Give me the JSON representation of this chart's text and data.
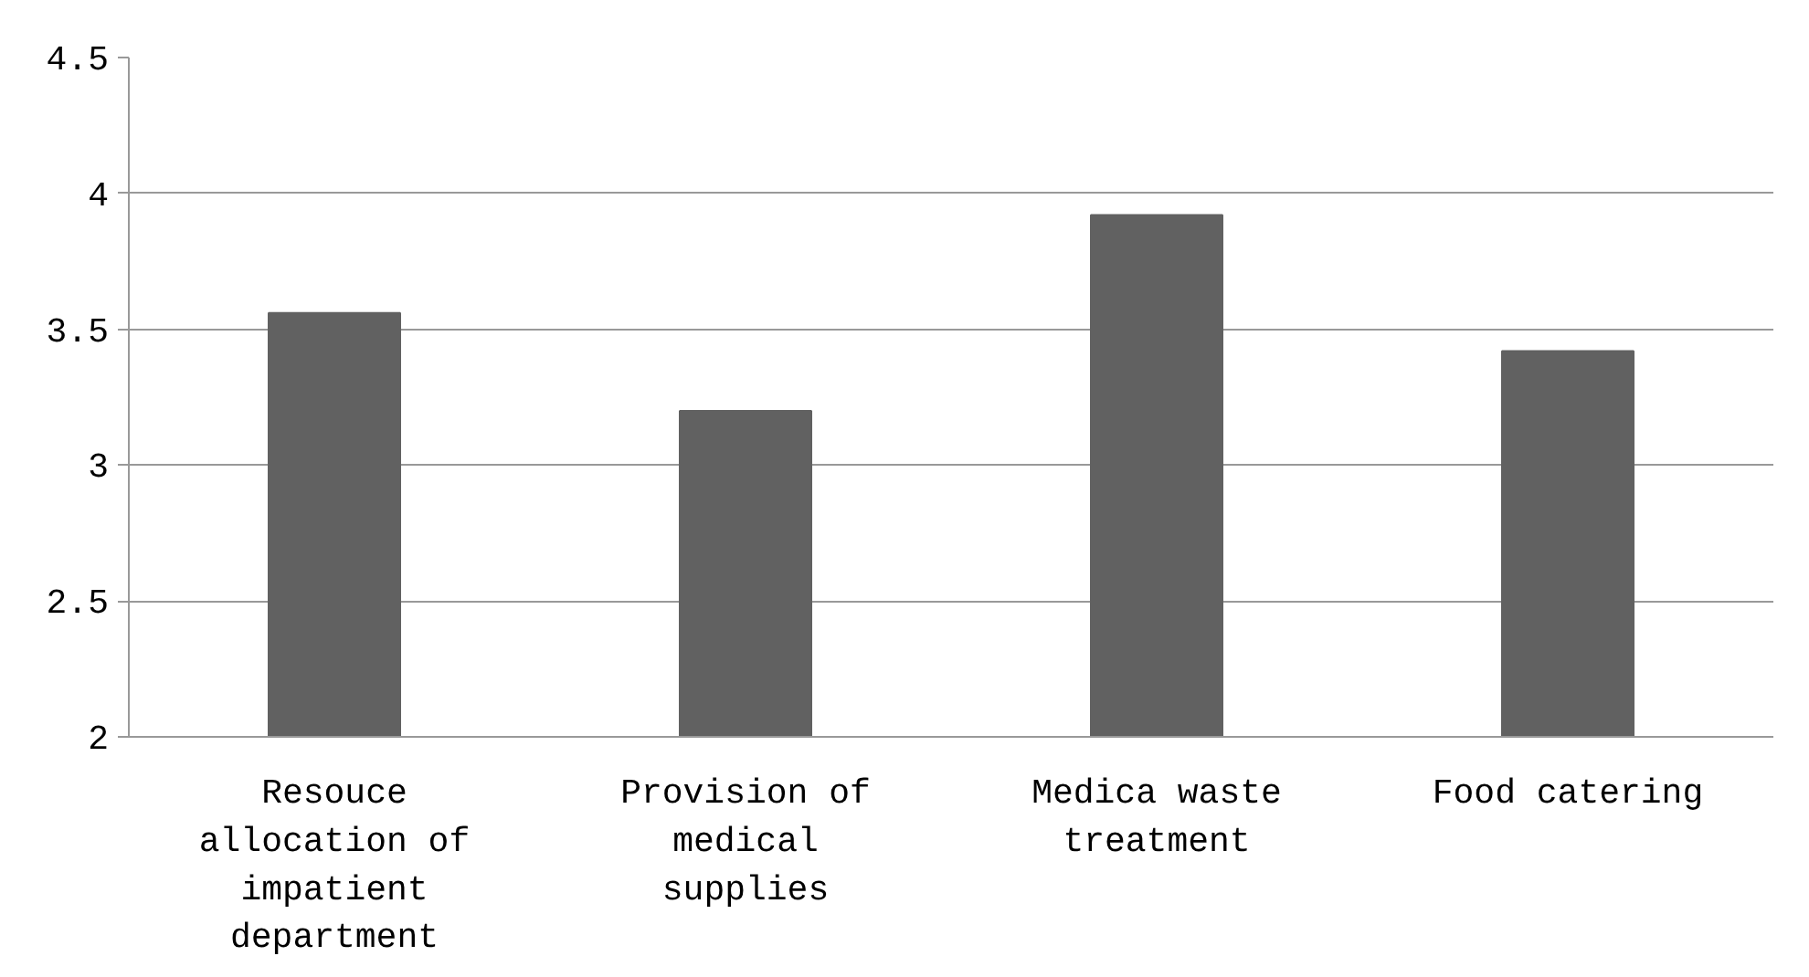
{
  "chart_data": {
    "type": "bar",
    "categories": [
      "Resouce allocation of impatient department",
      "Provision of medical supplies",
      "Medica waste treatment",
      "Food catering"
    ],
    "values": [
      3.56,
      3.2,
      3.92,
      3.42
    ],
    "color": "#616161",
    "ylim": [
      2,
      4.5
    ],
    "yticks": [
      2,
      2.5,
      3,
      3.5,
      4,
      4.5
    ],
    "grid": "y"
  }
}
